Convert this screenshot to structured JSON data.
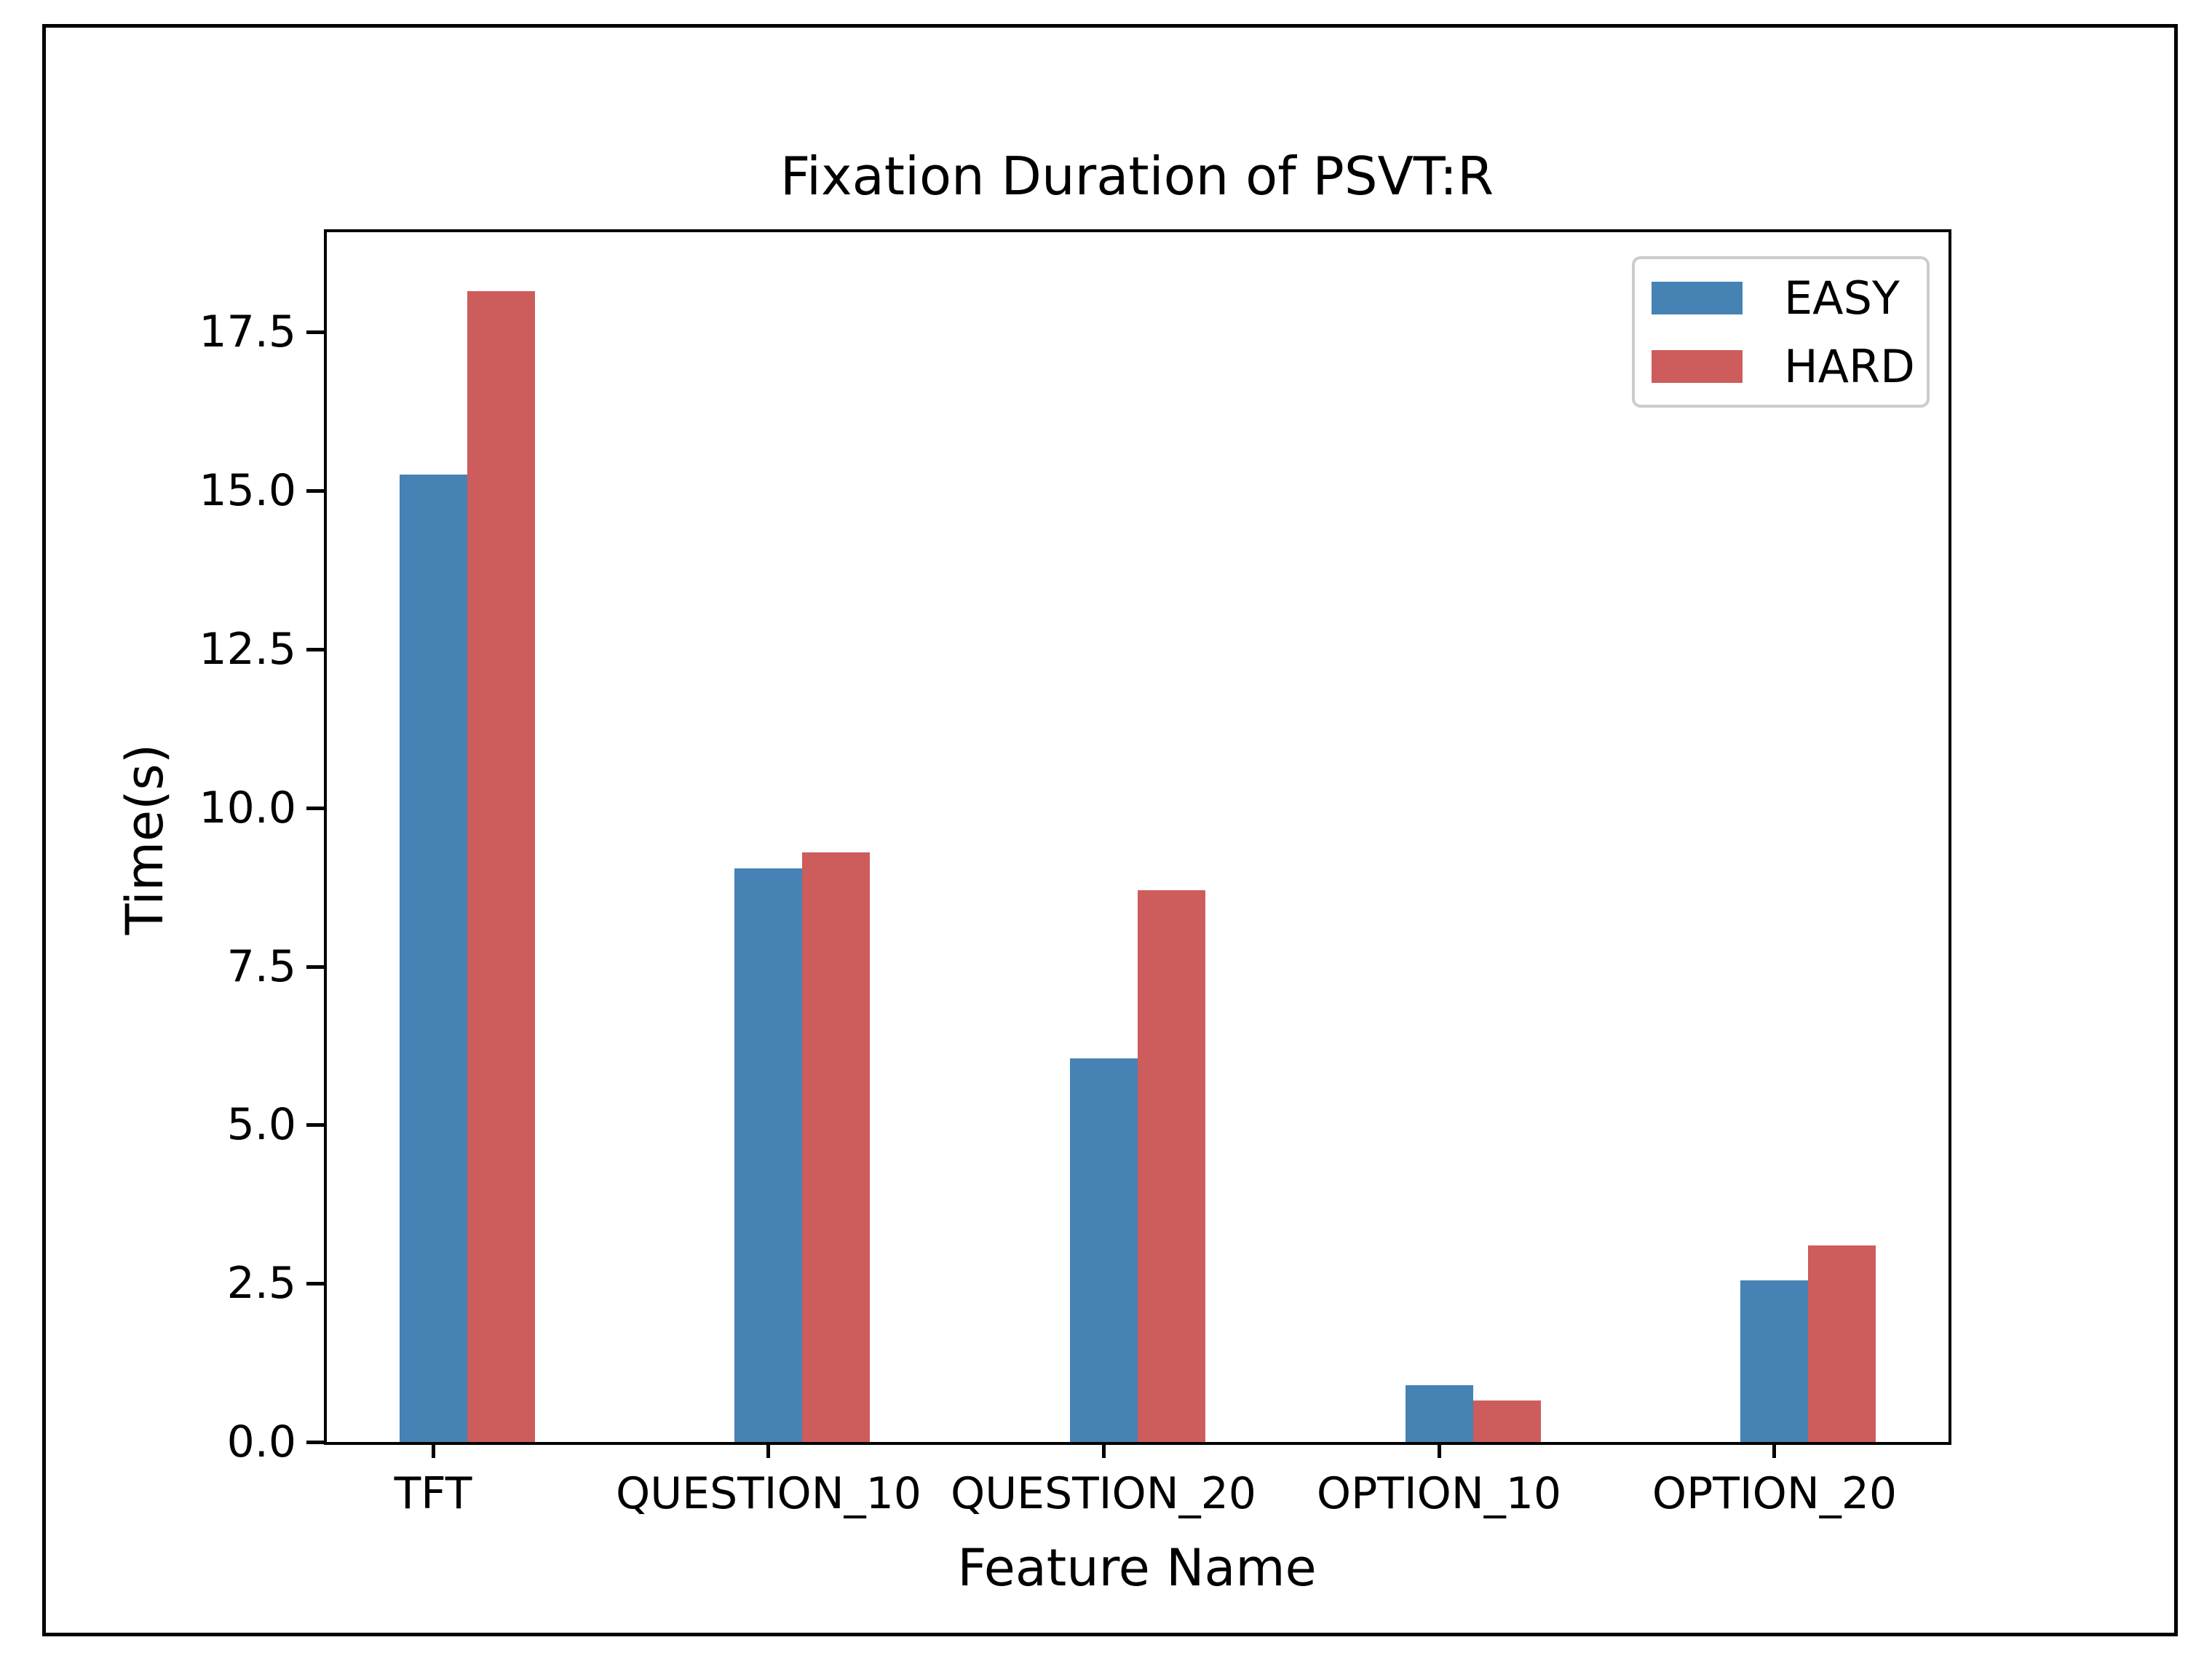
{
  "chart_data": {
    "type": "bar",
    "title": "Fixation Duration of PSVT:R",
    "xlabel": "Feature Name",
    "ylabel": "Time(s)",
    "categories": [
      "TFT",
      "QUESTION_10",
      "QUESTION_20",
      "OPTION_10",
      "OPTION_20"
    ],
    "series": [
      {
        "name": "EASY",
        "color": "#4682B4",
        "values": [
          15.25,
          9.05,
          6.05,
          0.9,
          2.55
        ]
      },
      {
        "name": "HARD",
        "color": "#CD5C5C",
        "values": [
          18.15,
          9.3,
          8.7,
          0.65,
          3.1
        ]
      }
    ],
    "ylim": [
      0,
      19.1
    ],
    "yticks": [
      0.0,
      2.5,
      5.0,
      7.5,
      10.0,
      12.5,
      15.0,
      17.5
    ],
    "ytick_labels": [
      "0.0",
      "2.5",
      "5.0",
      "7.5",
      "10.0",
      "12.5",
      "15.0",
      "17.5"
    ],
    "grid": false,
    "legend_position": "upper right"
  }
}
